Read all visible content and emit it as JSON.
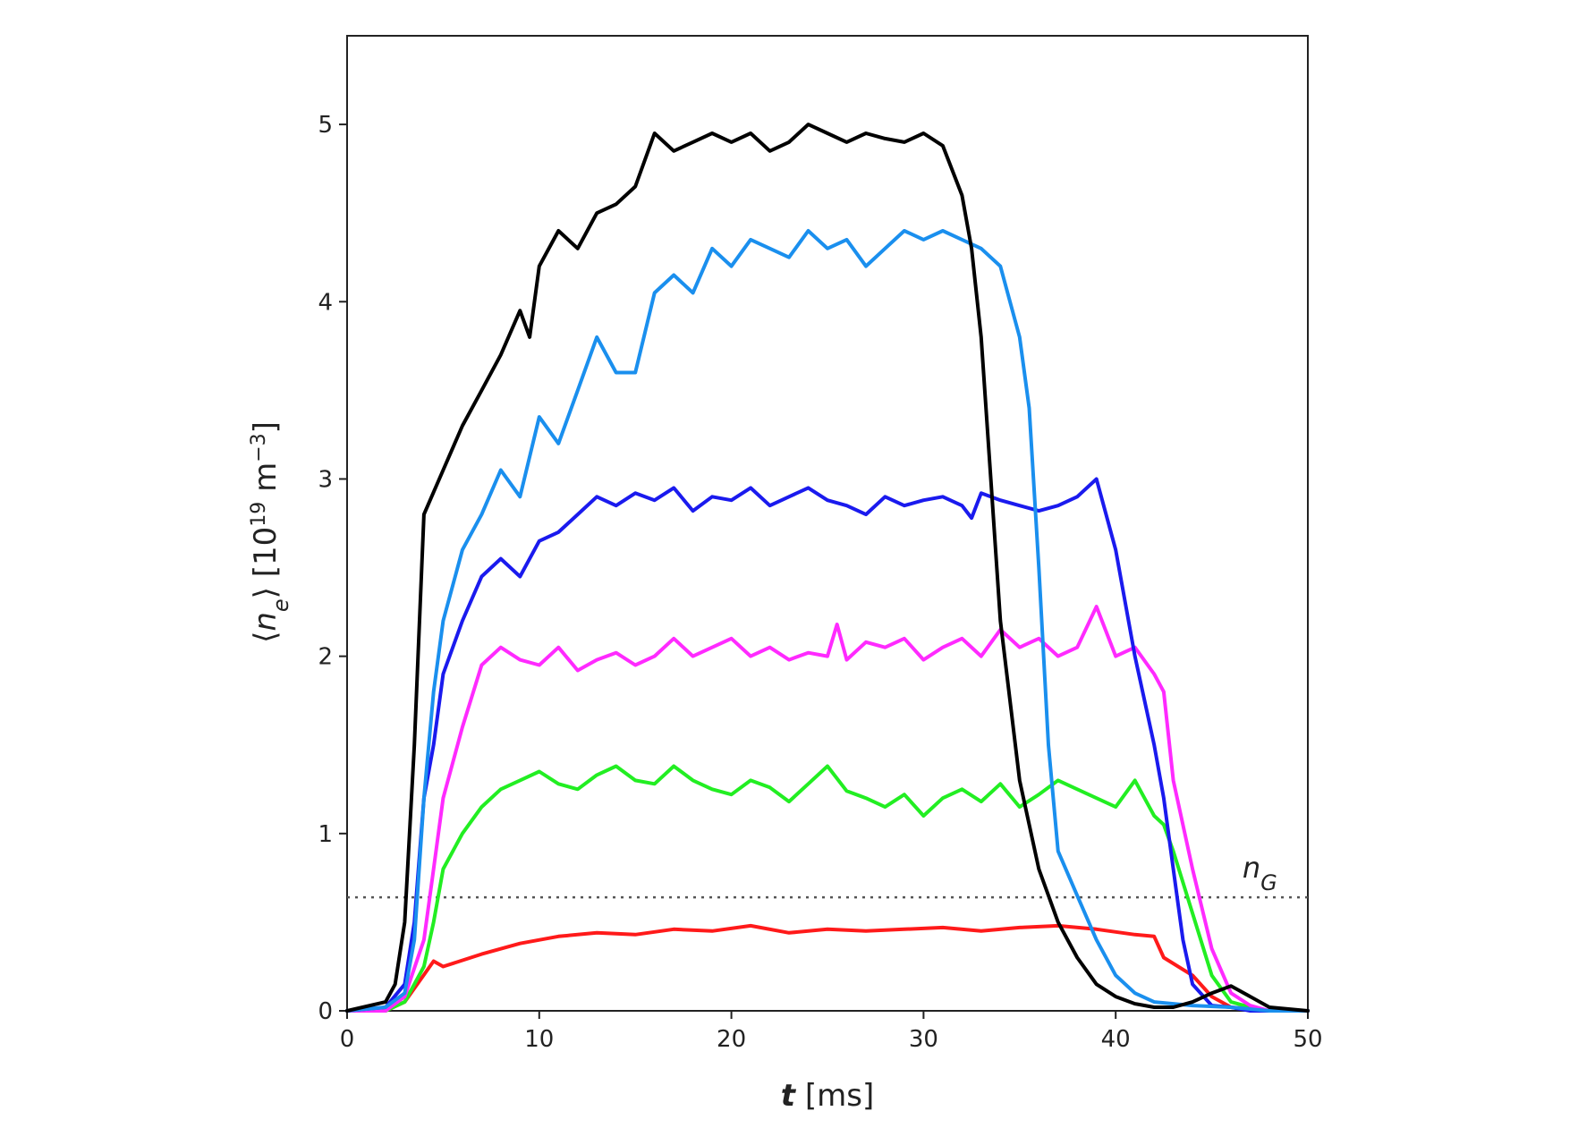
{
  "chart_data": {
    "type": "line",
    "title": "",
    "xlabel": {
      "italic": "t",
      "rest": " [ms]"
    },
    "ylabel": {
      "prefix": "⟨",
      "symbol": "n",
      "subscript": "e",
      "suffix": "⟩ [10",
      "exponent": "19",
      "unit": " m",
      "unit_exponent": "−3",
      "close": "]"
    },
    "xlim": [
      0,
      50
    ],
    "ylim": [
      0,
      5.5
    ],
    "xticks": [
      0,
      10,
      20,
      30,
      40,
      50
    ],
    "yticks": [
      0,
      1,
      2,
      3,
      4,
      5
    ],
    "xtick_labels": [
      "0",
      "10",
      "20",
      "30",
      "40",
      "50"
    ],
    "ytick_labels": [
      "0",
      "1",
      "2",
      "3",
      "4",
      "5"
    ],
    "grid": false,
    "reference_line": {
      "name": "Greenwald density",
      "label_symbol": "n",
      "label_subscript": "G",
      "value": 0.64,
      "style": "dotted",
      "color": "#555555"
    },
    "series": [
      {
        "name": "red",
        "color": "#ff1a1a",
        "x": [
          0,
          2,
          3,
          4.5,
          5,
          7,
          9,
          11,
          13,
          15,
          17,
          19,
          21,
          23,
          25,
          27,
          29,
          31,
          33,
          35,
          37,
          39,
          41,
          42,
          42.5,
          44,
          45,
          46,
          48,
          50
        ],
        "y": [
          0,
          0,
          0.05,
          0.28,
          0.25,
          0.32,
          0.38,
          0.42,
          0.44,
          0.43,
          0.46,
          0.45,
          0.48,
          0.44,
          0.46,
          0.45,
          0.46,
          0.47,
          0.45,
          0.47,
          0.48,
          0.46,
          0.43,
          0.42,
          0.3,
          0.2,
          0.08,
          0.02,
          0,
          0
        ]
      },
      {
        "name": "green",
        "color": "#22ee22",
        "x": [
          0,
          2,
          3,
          4,
          4.5,
          5,
          6,
          7,
          8,
          9,
          10,
          11,
          12,
          13,
          14,
          15,
          16,
          17,
          18,
          19,
          20,
          21,
          22,
          23,
          24,
          25,
          26,
          27,
          28,
          29,
          30,
          31,
          32,
          33,
          34,
          35,
          36,
          37,
          38,
          39,
          40,
          41,
          41.5,
          42,
          42.5,
          43,
          44,
          45,
          46,
          47,
          48,
          50
        ],
        "y": [
          0,
          0,
          0.05,
          0.25,
          0.5,
          0.8,
          1.0,
          1.15,
          1.25,
          1.3,
          1.35,
          1.28,
          1.25,
          1.33,
          1.38,
          1.3,
          1.28,
          1.38,
          1.3,
          1.25,
          1.22,
          1.3,
          1.26,
          1.18,
          1.28,
          1.38,
          1.24,
          1.2,
          1.15,
          1.22,
          1.1,
          1.2,
          1.25,
          1.18,
          1.28,
          1.15,
          1.22,
          1.3,
          1.25,
          1.2,
          1.15,
          1.3,
          1.2,
          1.1,
          1.05,
          0.9,
          0.55,
          0.2,
          0.05,
          0.02,
          0,
          0
        ]
      },
      {
        "name": "magenta",
        "color": "#ff2aff",
        "x": [
          0,
          2,
          3,
          4,
          4.5,
          5,
          6,
          7,
          8,
          9,
          10,
          11,
          12,
          13,
          14,
          15,
          16,
          17,
          18,
          19,
          20,
          21,
          22,
          23,
          24,
          25,
          25.5,
          26,
          27,
          28,
          29,
          30,
          31,
          32,
          33,
          34,
          35,
          36,
          37,
          38,
          39,
          40,
          41,
          42,
          42.5,
          43,
          44,
          45,
          46,
          47,
          48,
          50
        ],
        "y": [
          0,
          0,
          0.08,
          0.4,
          0.8,
          1.2,
          1.6,
          1.95,
          2.05,
          1.98,
          1.95,
          2.05,
          1.92,
          1.98,
          2.02,
          1.95,
          2.0,
          2.1,
          2.0,
          2.05,
          2.1,
          2.0,
          2.05,
          1.98,
          2.02,
          2.0,
          2.18,
          1.98,
          2.08,
          2.05,
          2.1,
          1.98,
          2.05,
          2.1,
          2.0,
          2.15,
          2.05,
          2.1,
          2.0,
          2.05,
          2.28,
          2.0,
          2.05,
          1.9,
          1.8,
          1.3,
          0.8,
          0.35,
          0.1,
          0.03,
          0,
          0
        ]
      },
      {
        "name": "blue",
        "color": "#1a1aee",
        "x": [
          0,
          2,
          3,
          3.5,
          4,
          4.5,
          5,
          6,
          7,
          8,
          9,
          10,
          11,
          12,
          13,
          14,
          15,
          16,
          17,
          18,
          19,
          20,
          21,
          22,
          23,
          24,
          25,
          26,
          27,
          28,
          29,
          30,
          31,
          32,
          32.5,
          33,
          34,
          35,
          36,
          37,
          38,
          39,
          40,
          41,
          42,
          42.5,
          43,
          43.5,
          44,
          45,
          46,
          47,
          48,
          50
        ],
        "y": [
          0,
          0.02,
          0.15,
          0.5,
          1.2,
          1.5,
          1.9,
          2.2,
          2.45,
          2.55,
          2.45,
          2.65,
          2.7,
          2.8,
          2.9,
          2.85,
          2.92,
          2.88,
          2.95,
          2.82,
          2.9,
          2.88,
          2.95,
          2.85,
          2.9,
          2.95,
          2.88,
          2.85,
          2.8,
          2.9,
          2.85,
          2.88,
          2.9,
          2.85,
          2.78,
          2.92,
          2.88,
          2.85,
          2.82,
          2.85,
          2.9,
          3.0,
          2.6,
          2.0,
          1.5,
          1.2,
          0.8,
          0.4,
          0.15,
          0.03,
          0.02,
          0,
          0,
          0
        ]
      },
      {
        "name": "light-blue",
        "color": "#1a8fee",
        "x": [
          0,
          2,
          3,
          3.5,
          4,
          4.5,
          5,
          6,
          7,
          8,
          9,
          10,
          11,
          12,
          13,
          14,
          15,
          16,
          17,
          18,
          19,
          20,
          21,
          22,
          23,
          24,
          25,
          26,
          27,
          28,
          29,
          30,
          31,
          32,
          33,
          34,
          35,
          35.5,
          36,
          36.5,
          37,
          38,
          39,
          40,
          41,
          42,
          44,
          46,
          48,
          50
        ],
        "y": [
          0,
          0.02,
          0.1,
          0.4,
          1.2,
          1.8,
          2.2,
          2.6,
          2.8,
          3.05,
          2.9,
          3.35,
          3.2,
          3.5,
          3.8,
          3.6,
          3.6,
          4.05,
          4.15,
          4.05,
          4.3,
          4.2,
          4.35,
          4.3,
          4.25,
          4.4,
          4.3,
          4.35,
          4.2,
          4.3,
          4.4,
          4.35,
          4.4,
          4.35,
          4.3,
          4.2,
          3.8,
          3.4,
          2.5,
          1.5,
          0.9,
          0.65,
          0.4,
          0.2,
          0.1,
          0.05,
          0.03,
          0.02,
          0,
          0
        ]
      },
      {
        "name": "black",
        "color": "#000000",
        "x": [
          0,
          2,
          2.5,
          3,
          3.5,
          4,
          5,
          6,
          7,
          8,
          9,
          9.5,
          10,
          11,
          12,
          13,
          14,
          15,
          16,
          17,
          18,
          19,
          20,
          21,
          22,
          23,
          24,
          25,
          26,
          27,
          28,
          29,
          30,
          31,
          32,
          32.5,
          33,
          33.5,
          34,
          35,
          36,
          37,
          38,
          39,
          40,
          41,
          42,
          43,
          44,
          45,
          46,
          47,
          48,
          50
        ],
        "y": [
          0,
          0.05,
          0.15,
          0.5,
          1.5,
          2.8,
          3.05,
          3.3,
          3.5,
          3.7,
          3.95,
          3.8,
          4.2,
          4.4,
          4.3,
          4.5,
          4.55,
          4.65,
          4.95,
          4.85,
          4.9,
          4.95,
          4.9,
          4.95,
          4.85,
          4.9,
          5.0,
          4.95,
          4.9,
          4.95,
          4.92,
          4.9,
          4.95,
          4.88,
          4.6,
          4.3,
          3.8,
          3.0,
          2.2,
          1.3,
          0.8,
          0.5,
          0.3,
          0.15,
          0.08,
          0.04,
          0.02,
          0.02,
          0.05,
          0.1,
          0.14,
          0.08,
          0.02,
          0
        ]
      }
    ]
  }
}
